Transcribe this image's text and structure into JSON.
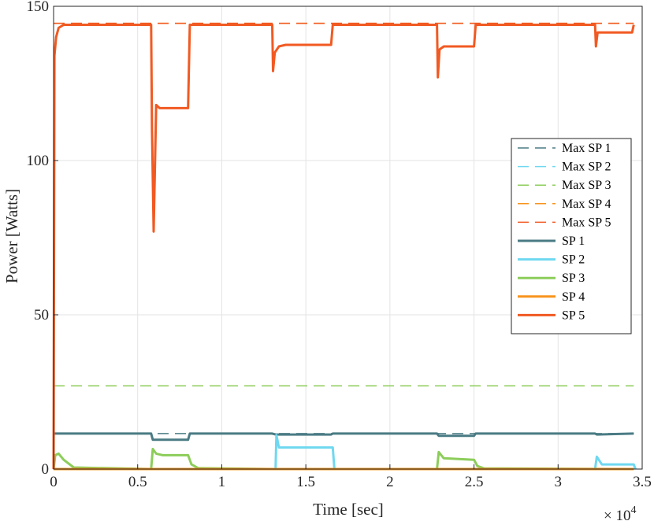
{
  "chart_data": {
    "type": "line",
    "title": "",
    "xlabel": "Time [sec]",
    "ylabel": "Power [Watts]",
    "x_multiplier_label": "× 10",
    "x_multiplier_exponent": "4",
    "xlim": [
      0,
      35000
    ],
    "ylim": [
      0,
      150
    ],
    "x_ticks": [
      0,
      5000,
      10000,
      15000,
      20000,
      25000,
      30000,
      35000
    ],
    "x_tick_labels": [
      "0",
      "0.5",
      "1",
      "1.5",
      "2",
      "2.5",
      "3",
      "3.5"
    ],
    "y_ticks": [
      0,
      50,
      100,
      150
    ],
    "y_tick_labels": [
      "0",
      "50",
      "100",
      "150"
    ],
    "grid": true,
    "legend_position": "right",
    "series": [
      {
        "name": "Max SP 1",
        "color": "#4a7b84",
        "style": "dashed",
        "x": [
          0,
          34500
        ],
        "y": [
          11.5,
          11.5
        ]
      },
      {
        "name": "Max SP 2",
        "color": "#6fd8f0",
        "style": "dashed",
        "x": [
          0,
          34500
        ],
        "y": [
          0,
          0
        ]
      },
      {
        "name": "Max SP 3",
        "color": "#8ccd5a",
        "style": "dashed",
        "x": [
          0,
          34500
        ],
        "y": [
          27,
          27
        ]
      },
      {
        "name": "Max SP 4",
        "color": "#f7941d",
        "style": "dashed",
        "x": [
          0,
          34500
        ],
        "y": [
          144.5,
          144.5
        ]
      },
      {
        "name": "Max SP 5",
        "color": "#f15a22",
        "style": "dashed",
        "x": [
          0,
          34500
        ],
        "y": [
          144.5,
          144.5
        ]
      },
      {
        "name": "SP 1",
        "color": "#4a7b84",
        "style": "solid",
        "x": [
          0,
          100,
          5800,
          5900,
          8000,
          8100,
          13000,
          13200,
          16500,
          16600,
          22800,
          22900,
          25000,
          25100,
          32200,
          32300,
          34500
        ],
        "y": [
          11.5,
          11.5,
          11.5,
          9.5,
          9.5,
          11.5,
          11.5,
          11.2,
          11.2,
          11.5,
          11.5,
          10.8,
          10.8,
          11.5,
          11.5,
          11.2,
          11.5
        ]
      },
      {
        "name": "SP 2",
        "color": "#6fd8f0",
        "style": "solid",
        "x": [
          0,
          13200,
          13250,
          13400,
          16600,
          16700,
          32200,
          32300,
          32600,
          34500,
          34600
        ],
        "y": [
          0,
          0,
          11,
          7,
          7,
          0,
          0,
          4,
          1.5,
          1.5,
          0
        ]
      },
      {
        "name": "SP 3",
        "color": "#8ccd5a",
        "style": "solid",
        "x": [
          0,
          100,
          300,
          600,
          1200,
          5800,
          5900,
          6100,
          6500,
          8000,
          8200,
          8600,
          13000,
          22800,
          22900,
          23200,
          25000,
          25200,
          25600,
          34500
        ],
        "y": [
          0,
          4.5,
          5,
          3,
          0.5,
          0,
          6.5,
          5,
          4.5,
          4.5,
          1.5,
          0.3,
          0,
          0,
          5.5,
          3.5,
          3,
          1,
          0.2,
          0
        ]
      },
      {
        "name": "SP 4",
        "color": "#f7941d",
        "style": "solid",
        "x": [
          0,
          34500
        ],
        "y": [
          0,
          0
        ]
      },
      {
        "name": "SP 5",
        "color": "#f15a22",
        "style": "solid",
        "x": [
          0,
          50,
          150,
          300,
          600,
          5800,
          5850,
          5950,
          6100,
          6300,
          8000,
          8100,
          13000,
          13050,
          13150,
          13400,
          13800,
          16500,
          16600,
          22800,
          22850,
          22950,
          23200,
          25000,
          25100,
          32200,
          32250,
          32350,
          34400,
          34500
        ],
        "y": [
          0,
          134,
          140,
          143,
          144,
          144,
          110,
          77,
          118,
          117,
          117,
          144,
          144,
          129,
          135,
          137,
          137.5,
          137.5,
          144,
          144,
          127,
          136,
          137,
          137,
          144,
          144,
          137,
          141.5,
          141.5,
          144
        ]
      }
    ]
  }
}
